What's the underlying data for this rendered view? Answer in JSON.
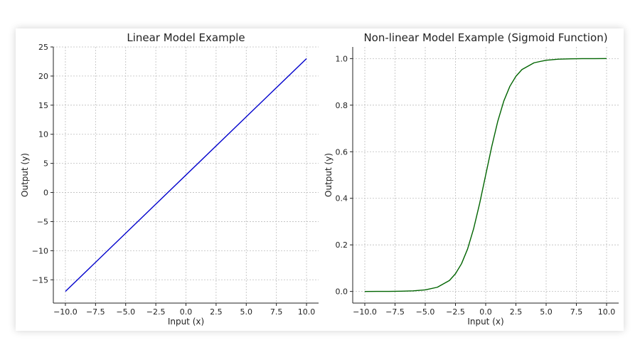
{
  "chart_data": [
    {
      "type": "line",
      "title": "Linear Model Example",
      "xlabel": "Input (x)",
      "ylabel": "Output (y)",
      "xlim": [
        -11,
        11
      ],
      "ylim": [
        -19,
        25
      ],
      "xticks": [
        -10.0,
        -7.5,
        -5.0,
        -2.5,
        0.0,
        2.5,
        5.0,
        7.5,
        10.0
      ],
      "xtick_labels": [
        "−10.0",
        "−7.5",
        "−5.0",
        "−2.5",
        "0.0",
        "2.5",
        "5.0",
        "7.5",
        "10.0"
      ],
      "yticks": [
        25,
        20,
        15,
        10,
        5,
        0,
        -5,
        -10,
        -15
      ],
      "ytick_labels": [
        "25",
        "20",
        "15",
        "10",
        "5",
        "0",
        "−5",
        "−10",
        "−15"
      ],
      "grid": true,
      "series": [
        {
          "color": "#0000cc",
          "x": [
            -10,
            10
          ],
          "y": [
            -17,
            23
          ]
        }
      ]
    },
    {
      "type": "line",
      "title": "Non-linear Model Example (Sigmoid Function)",
      "xlabel": "Input (x)",
      "ylabel": "Output (y)",
      "xlim": [
        -11,
        11
      ],
      "ylim": [
        -0.05,
        1.05
      ],
      "xticks": [
        -10.0,
        -7.5,
        -5.0,
        -2.5,
        0.0,
        2.5,
        5.0,
        7.5,
        10.0
      ],
      "xtick_labels": [
        "−10.0",
        "−7.5",
        "−5.0",
        "−2.5",
        "0.0",
        "2.5",
        "5.0",
        "7.5",
        "10.0"
      ],
      "yticks": [
        1.0,
        0.8,
        0.6,
        0.4,
        0.2,
        0.0
      ],
      "ytick_labels": [
        "1.0",
        "0.8",
        "0.6",
        "0.4",
        "0.2",
        "0.0"
      ],
      "grid": true,
      "series": [
        {
          "color": "#006400",
          "x": [
            -10,
            -9,
            -8,
            -7,
            -6,
            -5,
            -4,
            -3,
            -2.5,
            -2,
            -1.5,
            -1,
            -0.5,
            0,
            0.5,
            1,
            1.5,
            2,
            2.5,
            3,
            4,
            5,
            6,
            7,
            8,
            9,
            10
          ],
          "y": [
            0.0,
            0.0001,
            0.0003,
            0.0009,
            0.0025,
            0.0067,
            0.018,
            0.047,
            0.076,
            0.119,
            0.182,
            0.269,
            0.378,
            0.5,
            0.622,
            0.731,
            0.818,
            0.881,
            0.924,
            0.953,
            0.982,
            0.993,
            0.9975,
            0.9991,
            0.9997,
            0.9999,
            1.0
          ]
        }
      ]
    }
  ]
}
